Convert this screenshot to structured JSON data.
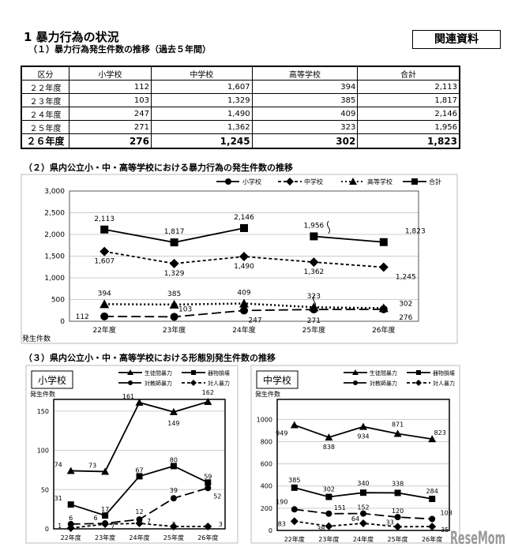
{
  "header": {
    "title": "1 暴力行為の状況",
    "subtitle": "（１）暴力行為発生件数の推移（過去５年間）",
    "related_label": "関連資料"
  },
  "table": {
    "headers": [
      "区分",
      "小学校",
      "中学校",
      "高等学校",
      "合計"
    ],
    "rows": [
      [
        "２２年度",
        "112",
        "1,607",
        "394",
        "2,113"
      ],
      [
        "２３年度",
        "103",
        "1,329",
        "385",
        "1,817"
      ],
      [
        "２４年度",
        "247",
        "1,490",
        "409",
        "2,146"
      ],
      [
        "２５年度",
        "271",
        "1,362",
        "323",
        "1,956"
      ],
      [
        "２６年度",
        "276",
        "1,245",
        "302",
        "1,823"
      ]
    ]
  },
  "section2_title": "（２）県内公立小・中・高等学校における暴力行為の発生件数の推移",
  "section3_title": "（３）県内公立小・中・高等学校における形態別発生件数の推移",
  "watermark": "ReseMom",
  "chart_data": [
    {
      "type": "line",
      "categories": [
        "22年度",
        "23年度",
        "24年度",
        "25年度",
        "26年度"
      ],
      "ylabel": "発生件数",
      "ylim": [
        0,
        3000
      ],
      "yticks": [
        0,
        500,
        1000,
        1500,
        2000,
        2500,
        3000
      ],
      "ytick_labels": [
        "0",
        "500",
        "1,000",
        "1,500",
        "2,000",
        "2,500",
        "3,000"
      ],
      "legend_placement": "top-right",
      "grid": true,
      "series": [
        {
          "name": "小学校",
          "values": [
            112,
            103,
            247,
            271,
            276
          ],
          "labels": [
            "112",
            "103",
            "247",
            "271",
            "276"
          ],
          "marker": "circle",
          "dash": "long"
        },
        {
          "name": "中学校",
          "values": [
            1607,
            1329,
            1490,
            1362,
            1245
          ],
          "labels": [
            "1,607",
            "1,329",
            "1,490",
            "1,362",
            "1,245"
          ],
          "marker": "diamond",
          "dash": "short"
        },
        {
          "name": "高等学校",
          "values": [
            394,
            385,
            409,
            323,
            302
          ],
          "labels": [
            "394",
            "385",
            "409",
            "323",
            "302"
          ],
          "marker": "triangle",
          "dash": "dot"
        },
        {
          "name": "合計",
          "values": [
            2113,
            1817,
            2146,
            1956,
            1823
          ],
          "labels": [
            "2,113",
            "1,817",
            "2,146",
            "1,956",
            "1,823"
          ],
          "marker": "square",
          "dash": "solid"
        }
      ]
    },
    {
      "type": "line",
      "title": "小学校",
      "categories": [
        "22年度",
        "23年度",
        "24年度",
        "25年度",
        "26年度"
      ],
      "ylabel": "発生件数",
      "ylim": [
        0,
        165
      ],
      "yticks": [
        0,
        50,
        100,
        150
      ],
      "ytick_labels": [
        "0",
        "50",
        "100",
        "150"
      ],
      "legend_placement": "top-right",
      "grid": true,
      "series": [
        {
          "name": "生徒間暴力",
          "values": [
            74,
            73,
            161,
            149,
            162
          ],
          "labels": [
            "74",
            "73",
            "161",
            "149",
            "162"
          ],
          "marker": "triangle",
          "dash": "solid"
        },
        {
          "name": "器物損壊",
          "values": [
            31,
            17,
            67,
            80,
            59
          ],
          "labels": [
            "31",
            "17",
            "67",
            "80",
            "59"
          ],
          "marker": "square",
          "dash": "solid"
        },
        {
          "name": "対教師暴力",
          "values": [
            6,
            7,
            12,
            39,
            52
          ],
          "labels": [
            "6",
            "7",
            "12",
            "39",
            "52"
          ],
          "marker": "circle",
          "dash": "long"
        },
        {
          "name": "対人暴力",
          "values": [
            1,
            6,
            7,
            3,
            3
          ],
          "labels": [
            "1",
            "6",
            "7",
            "3",
            "3"
          ],
          "marker": "diamond",
          "dash": "short"
        }
      ]
    },
    {
      "type": "line",
      "title": "中学校",
      "categories": [
        "22年度",
        "23年度",
        "24年度",
        "25年度",
        "26年度"
      ],
      "ylabel": "発生件数",
      "ylim": [
        0,
        1180
      ],
      "yticks": [
        0,
        200,
        400,
        600,
        800,
        1000
      ],
      "ytick_labels": [
        "0",
        "200",
        "400",
        "600",
        "800",
        "1000"
      ],
      "legend_placement": "top-right",
      "grid": true,
      "series": [
        {
          "name": "生徒間暴力",
          "values": [
            949,
            838,
            934,
            871,
            823
          ],
          "labels": [
            "949",
            "838",
            "934",
            "871",
            "823"
          ],
          "marker": "triangle",
          "dash": "solid"
        },
        {
          "name": "器物損壊",
          "values": [
            385,
            302,
            340,
            338,
            284
          ],
          "labels": [
            "385",
            "302",
            "340",
            "338",
            "284"
          ],
          "marker": "square",
          "dash": "solid"
        },
        {
          "name": "対教師暴力",
          "values": [
            190,
            151,
            152,
            120,
            103
          ],
          "labels": [
            "190",
            "151",
            "152",
            "120",
            "103"
          ],
          "marker": "circle",
          "dash": "long"
        },
        {
          "name": "対人暴力",
          "values": [
            83,
            38,
            64,
            33,
            35
          ],
          "labels": [
            "83",
            "38",
            "64",
            "33",
            "35"
          ],
          "marker": "diamond",
          "dash": "short"
        }
      ]
    }
  ]
}
